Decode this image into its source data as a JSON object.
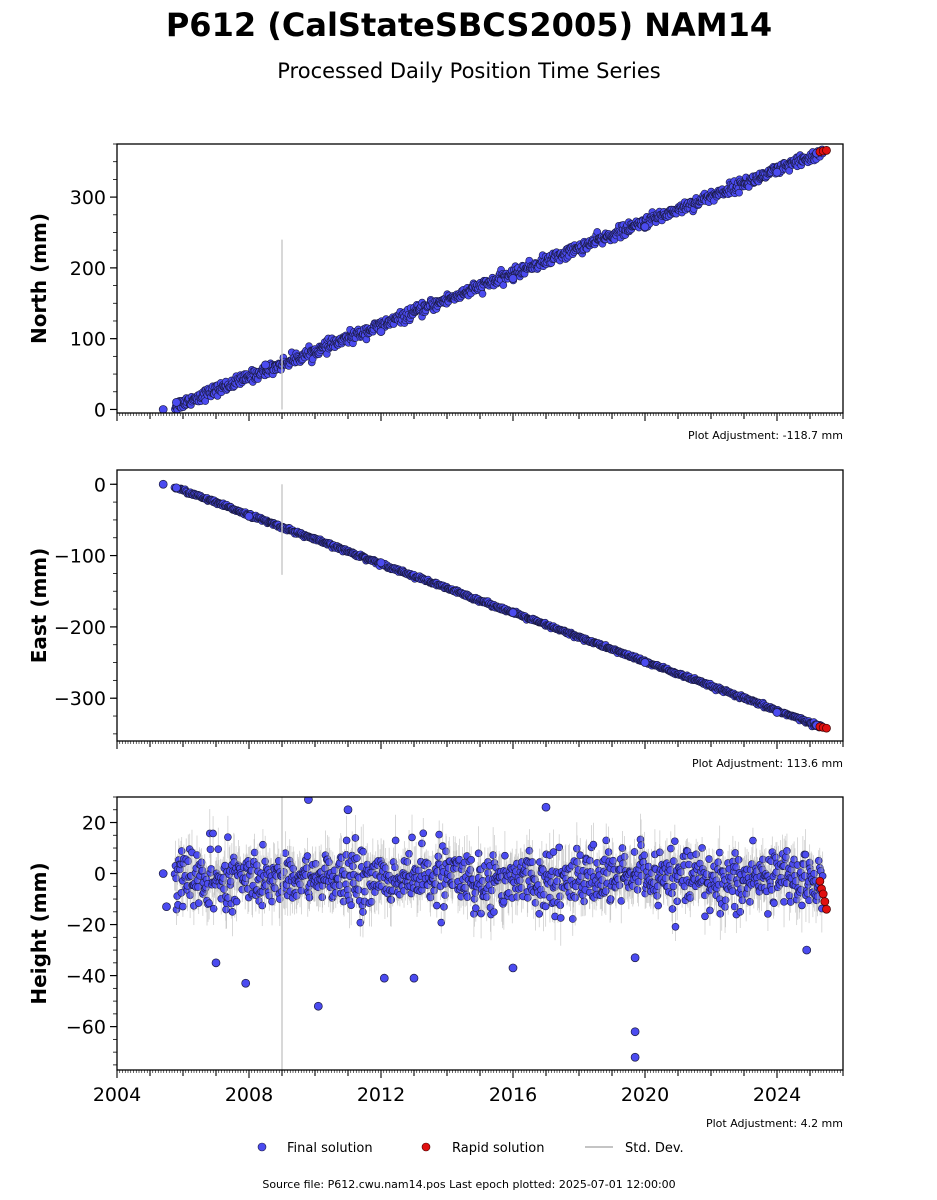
{
  "title": "P612 (CalStateSBCS2005) NAM14",
  "subtitle": "Processed Daily Position Time Series",
  "colors": {
    "final": "#4b4bf0",
    "final_edge": "#1a1a40",
    "rapid": "#e01010",
    "stddev": "#b0b0b0",
    "axis": "#000000"
  },
  "legend": {
    "placement": "bottom-center",
    "final_label": "Final solution",
    "rapid_label": "Rapid solution",
    "std_label": "Std. Dev."
  },
  "footer": "Source file: P612.cwu.nam14.pos  Last epoch plotted: 2025-07-01 12:00:00",
  "chart_data": [
    {
      "type": "scatter",
      "ylabel": "North (mm)",
      "adjustment": "Plot Adjustment: -118.7 mm",
      "xlim": [
        2004,
        2026
      ],
      "ylim": [
        -5,
        375
      ],
      "yticks": [
        0,
        100,
        200,
        300
      ],
      "xticks": [
        2004,
        2008,
        2012,
        2016,
        2020,
        2024
      ],
      "show_xticklabels": false,
      "trend": {
        "start_year": 2005.5,
        "start_value": 0,
        "end_year": 2025.5,
        "end_value": 365
      },
      "scatter_sd": 4,
      "std_spike": {
        "year": 2009.0,
        "low": 0,
        "high": 240
      },
      "series": [
        {
          "name": "Final solution",
          "x": [
            2005.4,
            2005.8,
            2008.5,
            2012.0,
            2016.0,
            2020.0,
            2024.0,
            2025.2
          ],
          "values": [
            0,
            10,
            63,
            110,
            185,
            258,
            335,
            362
          ]
        },
        {
          "name": "Rapid solution",
          "x": [
            2025.3,
            2025.4,
            2025.5
          ],
          "values": [
            364,
            365,
            366
          ]
        }
      ]
    },
    {
      "type": "scatter",
      "ylabel": "East (mm)",
      "adjustment": "Plot Adjustment: 113.6 mm",
      "xlim": [
        2004,
        2026
      ],
      "ylim": [
        -360,
        20
      ],
      "yticks": [
        0,
        -100,
        -200,
        -300
      ],
      "xticks": [
        2004,
        2008,
        2012,
        2016,
        2020,
        2024
      ],
      "show_xticklabels": false,
      "trend": {
        "start_year": 2005.5,
        "start_value": 0,
        "end_year": 2025.5,
        "end_value": -343
      },
      "scatter_sd": 1.2,
      "std_spike": {
        "year": 2009.0,
        "low": -127,
        "high": 0
      },
      "series": [
        {
          "name": "Final solution",
          "x": [
            2005.4,
            2005.8,
            2008.0,
            2012.0,
            2016.0,
            2020.0,
            2024.0,
            2025.2
          ],
          "values": [
            0,
            -5,
            -45,
            -110,
            -180,
            -250,
            -320,
            -338
          ]
        },
        {
          "name": "Rapid solution",
          "x": [
            2025.3,
            2025.4,
            2025.5
          ],
          "values": [
            -340,
            -341,
            -342
          ]
        }
      ]
    },
    {
      "type": "scatter",
      "ylabel": "Height (mm)",
      "adjustment": "Plot Adjustment: 4.2 mm",
      "xlim": [
        2004,
        2026
      ],
      "ylim": [
        -77,
        30
      ],
      "yticks": [
        20,
        0,
        -20,
        -40,
        -60
      ],
      "xticks": [
        2004,
        2008,
        2012,
        2016,
        2020,
        2024
      ],
      "xticklabels": [
        "2004",
        "2008",
        "2012",
        "2016",
        "2020",
        "2024"
      ],
      "show_xticklabels": true,
      "trend": {
        "start_year": 2005.5,
        "start_value": -2,
        "end_year": 2025.5,
        "end_value": -2
      },
      "scatter_sd": 5,
      "std_spike": {
        "year": 2009.0,
        "low": -77,
        "high": 30
      },
      "series": [
        {
          "name": "Final solution",
          "x": [
            2005.4,
            2005.5,
            2007.0,
            2007.9,
            2009.8,
            2010.1,
            2011.0,
            2012.1,
            2013.0,
            2016.0,
            2017.0,
            2019.7,
            2019.7,
            2019.7,
            2024.9
          ],
          "values": [
            0,
            -13,
            -35,
            -43,
            29,
            -52,
            25,
            -41,
            -41,
            -37,
            26,
            -33,
            -62,
            -72,
            -30
          ]
        },
        {
          "name": "Rapid solution",
          "x": [
            2025.3,
            2025.35,
            2025.4,
            2025.45,
            2025.5
          ],
          "values": [
            -3,
            -6,
            -8,
            -11,
            -14
          ]
        }
      ]
    }
  ]
}
